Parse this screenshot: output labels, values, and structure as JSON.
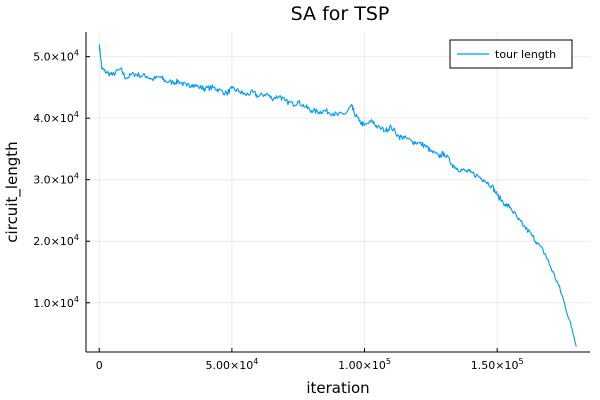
{
  "chart_data": {
    "type": "line",
    "title": "SA for TSP",
    "xlabel": "iteration",
    "ylabel": "circuit_length",
    "xlim": [
      -5000,
      185000
    ],
    "ylim": [
      2000,
      54000
    ],
    "grid": true,
    "legend_position": "top-right",
    "x_ticks": [
      {
        "value": 0,
        "mant": "0",
        "exp": ""
      },
      {
        "value": 50000,
        "mant": "5.00×10",
        "exp": "4"
      },
      {
        "value": 100000,
        "mant": "1.00×10",
        "exp": "5"
      },
      {
        "value": 150000,
        "mant": "1.50×10",
        "exp": "5"
      }
    ],
    "y_ticks": [
      {
        "value": 10000,
        "mant": "1.0×10",
        "exp": "4"
      },
      {
        "value": 20000,
        "mant": "2.0×10",
        "exp": "4"
      },
      {
        "value": 30000,
        "mant": "3.0×10",
        "exp": "4"
      },
      {
        "value": 40000,
        "mant": "4.0×10",
        "exp": "4"
      },
      {
        "value": 50000,
        "mant": "5.0×10",
        "exp": "4"
      }
    ],
    "series": [
      {
        "name": "tour length",
        "color": "#009af9",
        "x": [
          0,
          1000,
          2500,
          5000,
          8000,
          10000,
          13000,
          15000,
          18000,
          20000,
          23000,
          25000,
          28000,
          30000,
          33000,
          35000,
          38000,
          40000,
          43000,
          45000,
          48000,
          50000,
          53000,
          55000,
          58000,
          60000,
          63000,
          65000,
          68000,
          70000,
          73000,
          75000,
          78000,
          80000,
          83000,
          85000,
          88000,
          90000,
          93000,
          95000,
          96000,
          98000,
          100000,
          103000,
          105000,
          108000,
          110000,
          113000,
          115000,
          118000,
          120000,
          123000,
          125000,
          128000,
          130000,
          133000,
          135000,
          138000,
          140000,
          143000,
          145000,
          148000,
          150000,
          153000,
          155000,
          158000,
          160000,
          163000,
          165000,
          168000,
          170000,
          173000,
          175000,
          178000,
          180000
        ],
        "y": [
          52000,
          48000,
          47500,
          47000,
          48000,
          46500,
          47200,
          47000,
          46800,
          46300,
          46700,
          46000,
          45800,
          46000,
          45200,
          45500,
          45000,
          44800,
          45000,
          44600,
          44000,
          44800,
          44300,
          43800,
          44200,
          43500,
          44000,
          43200,
          43600,
          42800,
          42300,
          42600,
          41800,
          41200,
          41000,
          41200,
          40800,
          40500,
          40800,
          42000,
          41000,
          39500,
          38800,
          39500,
          38500,
          38000,
          38600,
          37000,
          36800,
          36200,
          36000,
          35500,
          34600,
          33800,
          34300,
          32500,
          31800,
          31400,
          31200,
          30500,
          30000,
          29000,
          27500,
          26000,
          25500,
          23500,
          22500,
          21000,
          19800,
          18000,
          16000,
          13000,
          10500,
          6000,
          3000
        ]
      }
    ]
  }
}
